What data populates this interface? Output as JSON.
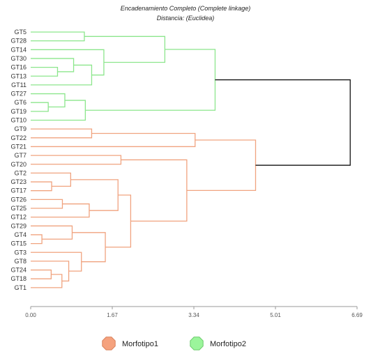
{
  "chart_data": {
    "type": "dendrogram",
    "title": "Encadenamiento Completo (Complete linkage)",
    "subtitle": "Distancia: (Euclidea)",
    "orientation": "horizontal",
    "x_ticks": [
      "0.00",
      "1.67",
      "3.34",
      "5.01",
      "6.69"
    ],
    "xlim": [
      0,
      6.69
    ],
    "leaves": [
      "GT5",
      "GT28",
      "GT14",
      "GT30",
      "GT16",
      "GT13",
      "GT11",
      "GT27",
      "GT6",
      "GT19",
      "GT10",
      "GT9",
      "GT22",
      "GT21",
      "GT7",
      "GT20",
      "GT2",
      "GT23",
      "GT17",
      "GT26",
      "GT25",
      "GT12",
      "GT29",
      "GT4",
      "GT15",
      "GT3",
      "GT8",
      "GT24",
      "GT18",
      "GT1"
    ],
    "leaf_groups": [
      2,
      2,
      2,
      2,
      2,
      2,
      2,
      2,
      2,
      2,
      2,
      1,
      1,
      1,
      1,
      1,
      1,
      1,
      1,
      1,
      1,
      1,
      1,
      1,
      1,
      1,
      1,
      1,
      1,
      1
    ],
    "merges": [
      {
        "a": "GT5",
        "b": "GT28",
        "h": 1.1,
        "c": 2
      },
      {
        "a": "GT16",
        "b": "GT13",
        "h": 0.55,
        "c": 2
      },
      {
        "a": "GT30",
        "b": "n1",
        "h": 0.88,
        "c": 2
      },
      {
        "a": "n2",
        "b": "GT11",
        "h": 1.25,
        "c": 2
      },
      {
        "a": "GT14",
        "b": "n3",
        "h": 1.5,
        "c": 2
      },
      {
        "a": "n0",
        "b": "n4",
        "h": 2.75,
        "c": 2
      },
      {
        "a": "GT6",
        "b": "GT19",
        "h": 0.36,
        "c": 2
      },
      {
        "a": "GT27",
        "b": "n6",
        "h": 0.7,
        "c": 2
      },
      {
        "a": "n7",
        "b": "GT10",
        "h": 1.12,
        "c": 2
      },
      {
        "a": "n5",
        "b": "n8",
        "h": 3.78,
        "c": 2
      },
      {
        "a": "GT9",
        "b": "GT22",
        "h": 1.25,
        "c": 1
      },
      {
        "a": "n10",
        "b": "GT21",
        "h": 3.37,
        "c": 1
      },
      {
        "a": "GT7",
        "b": "GT20",
        "h": 1.85,
        "c": 1
      },
      {
        "a": "GT23",
        "b": "GT17",
        "h": 0.43,
        "c": 1
      },
      {
        "a": "GT2",
        "b": "n13",
        "h": 0.82,
        "c": 1
      },
      {
        "a": "GT26",
        "b": "GT25",
        "h": 0.65,
        "c": 1
      },
      {
        "a": "n15",
        "b": "GT12",
        "h": 1.2,
        "c": 1
      },
      {
        "a": "n14",
        "b": "n16",
        "h": 1.79,
        "c": 1
      },
      {
        "a": "GT4",
        "b": "GT15",
        "h": 0.23,
        "c": 1
      },
      {
        "a": "GT29",
        "b": "n18",
        "h": 0.85,
        "c": 1
      },
      {
        "a": "GT24",
        "b": "GT18",
        "h": 0.42,
        "c": 1
      },
      {
        "a": "n20",
        "b": "GT1",
        "h": 0.64,
        "c": 1
      },
      {
        "a": "GT8",
        "b": "n21",
        "h": 0.78,
        "c": 1
      },
      {
        "a": "GT3",
        "b": "n22",
        "h": 1.04,
        "c": 1
      },
      {
        "a": "n19",
        "b": "n23",
        "h": 1.53,
        "c": 1
      },
      {
        "a": "n17",
        "b": "n24",
        "h": 2.05,
        "c": 1
      },
      {
        "a": "n12",
        "b": "n25",
        "h": 3.2,
        "c": 1
      },
      {
        "a": "n11",
        "b": "n26",
        "h": 4.61,
        "c": 1
      },
      {
        "a": "n9",
        "b": "n27",
        "h": 6.55,
        "c": 0
      }
    ],
    "legend": [
      {
        "label": "Morfotipo1",
        "group": 1
      },
      {
        "label": "Morfotipo2",
        "group": 2
      }
    ],
    "colors": {
      "group1_line": "#F0A37F",
      "group2_line": "#8CE68C",
      "root_line": "#111111",
      "axis": "#999999",
      "legend_group1_fill": "#F5A27E",
      "legend_group1_stroke": "#D9825C",
      "legend_group2_fill": "#9BF59B",
      "legend_group2_stroke": "#6CCB6C"
    },
    "legend_position": "bottom"
  }
}
